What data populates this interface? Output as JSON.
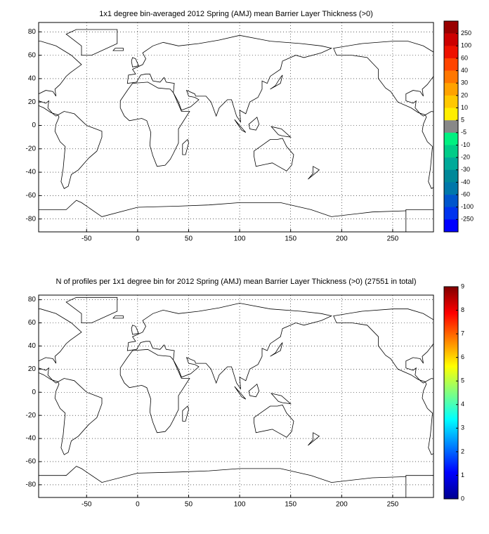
{
  "maps": [
    {
      "title": "1x1 degree bin-averaged 2012 Spring (AMJ) mean Barrier Layer Thickness (>0)",
      "xlim": [
        -97,
        290
      ],
      "ylim": [
        -91,
        88
      ],
      "xticks": [
        -50,
        0,
        50,
        100,
        150,
        200,
        250
      ],
      "yticks": [
        -80,
        -60,
        -40,
        -20,
        0,
        20,
        40,
        60,
        80
      ],
      "grid": true,
      "colorbar": {
        "type": "discrete",
        "labels": [
          250,
          100,
          60,
          40,
          30,
          20,
          10,
          5,
          -5,
          -10,
          -20,
          -30,
          -40,
          -60,
          -100,
          -250
        ],
        "colors": [
          "#990000",
          "#cc0000",
          "#ee1100",
          "#ff4400",
          "#ff7700",
          "#ffa200",
          "#ffc800",
          "#ffee00",
          "#888888",
          "#00f080",
          "#00cc88",
          "#00aa99",
          "#008899",
          "#0077aa",
          "#0055cc",
          "#0033ee",
          "#0000ff"
        ]
      }
    },
    {
      "title": "N of profiles per 1x1 degree bin for 2012 Spring (AMJ) mean Barrier Layer Thickness (>0) (27551 in total)",
      "xlim": [
        -97,
        290
      ],
      "ylim": [
        -91,
        84
      ],
      "xticks": [
        -50,
        0,
        50,
        100,
        150,
        200,
        250
      ],
      "yticks": [
        -80,
        -60,
        -40,
        -20,
        0,
        20,
        40,
        60,
        80
      ],
      "grid": true,
      "colorbar": {
        "type": "continuous",
        "colormap": "jet",
        "lim": [
          0,
          9
        ],
        "ticks": [
          0,
          1,
          2,
          3,
          4,
          5,
          6,
          7,
          8,
          9
        ]
      }
    }
  ]
}
